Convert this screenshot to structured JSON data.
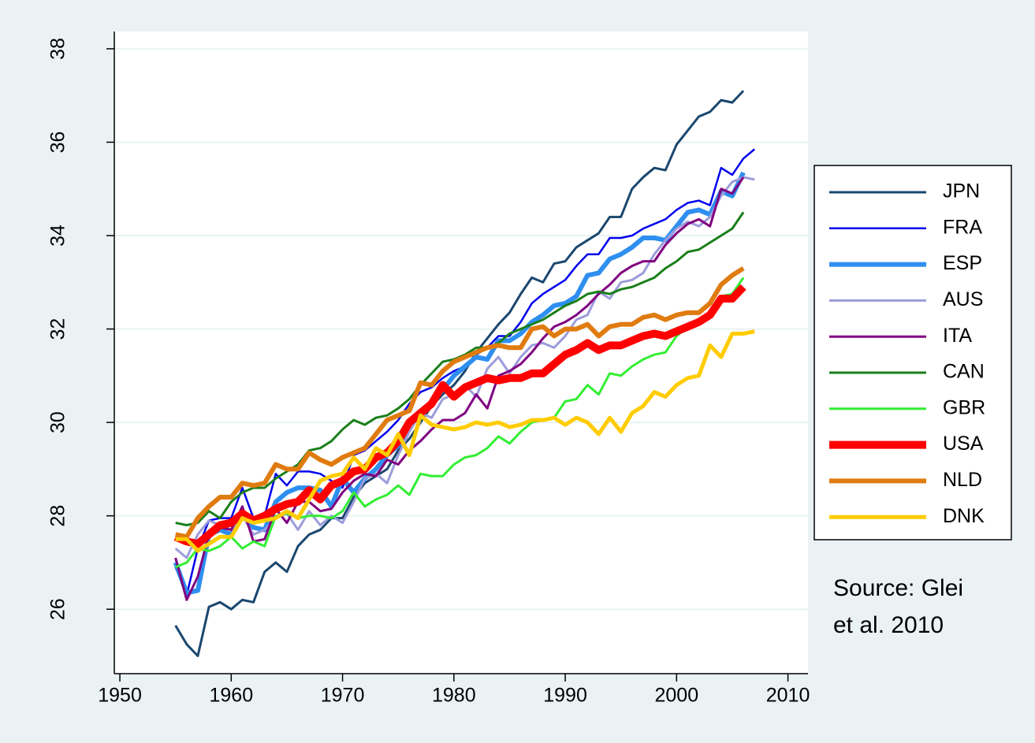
{
  "chart_data": {
    "type": "line",
    "annotation": [
      "Source: Glei",
      "et al. 2010"
    ],
    "x": [
      1955,
      1956,
      1957,
      1958,
      1959,
      1960,
      1961,
      1962,
      1963,
      1964,
      1965,
      1966,
      1967,
      1968,
      1969,
      1970,
      1971,
      1972,
      1973,
      1974,
      1975,
      1976,
      1977,
      1978,
      1979,
      1980,
      1981,
      1982,
      1983,
      1984,
      1985,
      1986,
      1987,
      1988,
      1989,
      1990,
      1991,
      1992,
      1993,
      1994,
      1995,
      1996,
      1997,
      1998,
      1999,
      2000,
      2001,
      2002,
      2003,
      2004,
      2005,
      2006,
      2007
    ],
    "xlim": [
      1949.5,
      2011.8
    ],
    "xticks": [
      1950,
      1960,
      1970,
      1980,
      1990,
      2000,
      2010
    ],
    "ylim": [
      24.62,
      38.37
    ],
    "yticks": [
      26,
      28,
      30,
      32,
      34,
      36,
      38
    ],
    "grid": true,
    "legend": "right",
    "series": [
      {
        "name": "JPN",
        "color": "#1a476f",
        "values": [
          25.65,
          25.25,
          25.0,
          26.05,
          26.15,
          26.0,
          26.2,
          26.15,
          26.8,
          27.0,
          26.8,
          27.35,
          27.6,
          27.7,
          27.95,
          27.95,
          28.4,
          28.7,
          28.85,
          29.0,
          29.4,
          29.65,
          30.0,
          30.35,
          30.6,
          30.8,
          31.1,
          31.5,
          31.8,
          32.1,
          32.35,
          32.75,
          33.1,
          33.0,
          33.4,
          33.45,
          33.75,
          33.9,
          34.05,
          34.4,
          34.4,
          35.0,
          35.25,
          35.45,
          35.4,
          35.95,
          36.25,
          36.55,
          36.65,
          36.9,
          36.85,
          37.1,
          null
        ]
      },
      {
        "name": "FRA",
        "color": "#0000ee",
        "values": [
          26.9,
          26.3,
          27.3,
          27.9,
          27.95,
          27.95,
          28.6,
          27.95,
          28.0,
          28.9,
          28.65,
          28.95,
          28.95,
          28.9,
          28.75,
          28.6,
          29.3,
          29.4,
          29.6,
          29.8,
          30.05,
          30.4,
          30.65,
          30.75,
          30.95,
          31.1,
          31.2,
          31.45,
          31.6,
          31.85,
          31.85,
          32.15,
          32.55,
          32.75,
          32.9,
          33.05,
          33.35,
          33.6,
          33.6,
          33.95,
          33.95,
          34.0,
          34.15,
          34.25,
          34.35,
          34.55,
          34.7,
          34.75,
          34.65,
          35.45,
          35.3,
          35.65,
          35.85
        ]
      },
      {
        "name": "ESP",
        "color": "#2e8ff0",
        "values": [
          27.0,
          26.35,
          26.4,
          27.6,
          27.7,
          27.6,
          28.0,
          27.75,
          27.7,
          28.3,
          28.5,
          28.6,
          28.6,
          28.55,
          28.2,
          28.8,
          28.5,
          28.8,
          29.0,
          29.3,
          29.5,
          29.9,
          30.25,
          30.4,
          30.7,
          31.0,
          31.2,
          31.4,
          31.35,
          31.75,
          31.75,
          31.9,
          32.15,
          32.3,
          32.5,
          32.55,
          32.7,
          33.15,
          33.2,
          33.5,
          33.6,
          33.75,
          33.95,
          33.95,
          33.9,
          34.2,
          34.5,
          34.55,
          34.45,
          34.95,
          34.85,
          35.35,
          null
        ]
      },
      {
        "name": "AUS",
        "color": "#9c9cdc",
        "values": [
          27.3,
          27.1,
          27.6,
          27.9,
          27.8,
          27.7,
          28.0,
          27.6,
          27.7,
          27.95,
          28.05,
          27.7,
          28.1,
          27.8,
          28.0,
          27.85,
          28.3,
          28.8,
          28.9,
          28.7,
          29.3,
          29.8,
          30.2,
          30.1,
          30.5,
          30.6,
          30.8,
          30.55,
          31.15,
          31.4,
          31.05,
          31.4,
          31.65,
          31.7,
          31.6,
          31.85,
          32.2,
          32.3,
          32.8,
          32.65,
          33.0,
          33.05,
          33.2,
          33.6,
          33.9,
          34.15,
          34.3,
          34.2,
          34.4,
          34.85,
          35.15,
          35.25,
          35.2
        ]
      },
      {
        "name": "ITA",
        "color": "#800080",
        "values": [
          27.1,
          26.2,
          26.7,
          27.6,
          27.75,
          27.7,
          28.2,
          27.45,
          27.5,
          28.15,
          27.85,
          28.3,
          28.3,
          28.1,
          28.15,
          28.5,
          28.75,
          28.9,
          28.85,
          29.2,
          29.1,
          29.4,
          29.6,
          29.85,
          30.05,
          30.05,
          30.2,
          30.6,
          30.3,
          31.0,
          31.1,
          31.25,
          31.5,
          31.8,
          32.05,
          32.15,
          32.3,
          32.5,
          32.75,
          32.95,
          33.2,
          33.35,
          33.45,
          33.45,
          33.8,
          34.05,
          34.25,
          34.35,
          34.2,
          35.0,
          34.9,
          35.25,
          null
        ]
      },
      {
        "name": "CAN",
        "color": "#1a7f1a",
        "values": [
          27.85,
          27.8,
          27.85,
          28.1,
          27.95,
          28.3,
          28.5,
          28.6,
          28.6,
          28.8,
          28.95,
          29.1,
          29.4,
          29.45,
          29.6,
          29.85,
          30.05,
          29.95,
          30.1,
          30.15,
          30.3,
          30.5,
          30.8,
          31.05,
          31.3,
          31.35,
          31.45,
          31.6,
          31.6,
          31.7,
          31.9,
          32.0,
          32.1,
          32.2,
          32.35,
          32.5,
          32.6,
          32.75,
          32.8,
          32.75,
          32.85,
          32.9,
          33.0,
          33.1,
          33.3,
          33.45,
          33.65,
          33.7,
          33.85,
          34.0,
          34.15,
          34.5,
          null
        ]
      },
      {
        "name": "GBR",
        "color": "#33ee33",
        "values": [
          26.9,
          27.0,
          27.3,
          27.25,
          27.35,
          27.55,
          27.3,
          27.45,
          27.35,
          28.0,
          28.05,
          27.95,
          28.0,
          28.0,
          27.95,
          28.1,
          28.5,
          28.2,
          28.35,
          28.45,
          28.65,
          28.45,
          28.9,
          28.85,
          28.85,
          29.1,
          29.25,
          29.3,
          29.45,
          29.7,
          29.55,
          29.8,
          30.0,
          30.05,
          30.1,
          30.45,
          30.5,
          30.8,
          30.6,
          31.05,
          31.0,
          31.2,
          31.35,
          31.45,
          31.5,
          31.85,
          32.05,
          32.1,
          32.25,
          32.7,
          32.75,
          33.1,
          null
        ]
      },
      {
        "name": "USA",
        "color": "#ff0000",
        "values": [
          27.55,
          27.45,
          27.4,
          27.6,
          27.8,
          27.85,
          28.05,
          27.9,
          28.0,
          28.15,
          28.25,
          28.3,
          28.55,
          28.35,
          28.65,
          28.75,
          28.95,
          29.0,
          29.25,
          29.35,
          29.6,
          30.0,
          30.2,
          30.4,
          30.8,
          30.55,
          30.75,
          30.85,
          30.95,
          30.9,
          30.95,
          30.95,
          31.05,
          31.05,
          31.25,
          31.45,
          31.55,
          31.7,
          31.55,
          31.65,
          31.65,
          31.75,
          31.85,
          31.9,
          31.85,
          31.95,
          32.05,
          32.15,
          32.3,
          32.65,
          32.65,
          32.9,
          null
        ]
      },
      {
        "name": "NLD",
        "color": "#e07b10",
        "values": [
          27.6,
          27.55,
          27.95,
          28.2,
          28.4,
          28.4,
          28.7,
          28.65,
          28.7,
          29.1,
          29.0,
          29.0,
          29.35,
          29.2,
          29.1,
          29.25,
          29.35,
          29.45,
          29.75,
          30.05,
          30.15,
          30.25,
          30.85,
          30.8,
          31.1,
          31.3,
          31.4,
          31.5,
          31.6,
          31.65,
          31.6,
          31.6,
          32.0,
          32.05,
          31.85,
          32.0,
          32.0,
          32.1,
          31.85,
          32.05,
          32.1,
          32.1,
          32.25,
          32.3,
          32.2,
          32.3,
          32.35,
          32.35,
          32.55,
          32.95,
          33.15,
          33.3,
          null
        ]
      },
      {
        "name": "DNK",
        "color": "#ffcc00",
        "values": [
          27.5,
          27.5,
          27.25,
          27.4,
          27.55,
          27.55,
          27.95,
          27.85,
          27.9,
          27.95,
          28.1,
          27.95,
          28.35,
          28.75,
          28.85,
          28.9,
          29.25,
          29.0,
          29.45,
          29.3,
          29.75,
          29.3,
          30.15,
          29.95,
          29.9,
          29.85,
          29.9,
          30.0,
          29.95,
          30.0,
          29.9,
          29.95,
          30.05,
          30.05,
          30.1,
          29.95,
          30.1,
          30.0,
          29.75,
          30.1,
          29.8,
          30.2,
          30.35,
          30.65,
          30.55,
          30.8,
          30.95,
          31.0,
          31.65,
          31.4,
          31.9,
          31.9,
          31.95
        ]
      }
    ]
  }
}
